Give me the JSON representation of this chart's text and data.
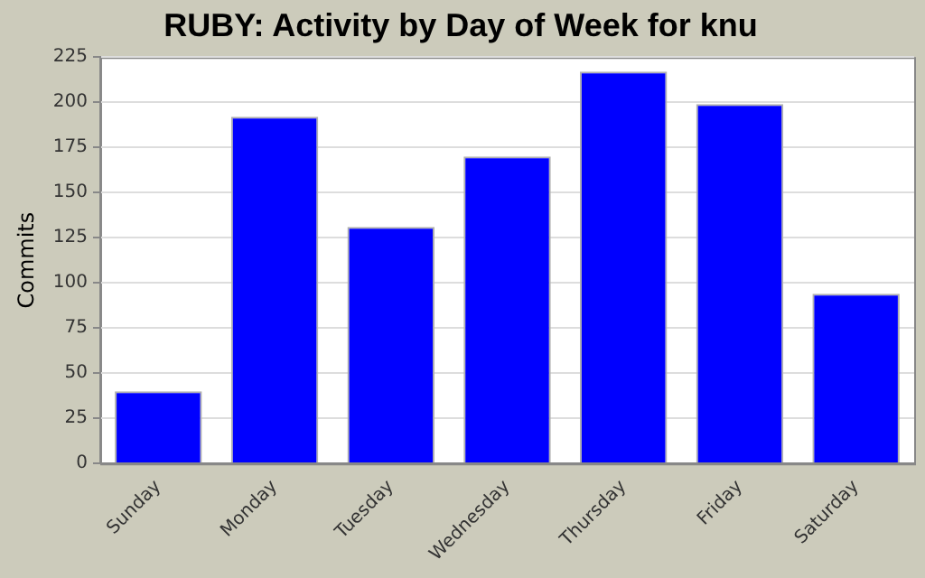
{
  "chart_data": {
    "type": "bar",
    "title": "RUBY: Activity by Day of Week for knu",
    "ylabel": "Commits",
    "categories": [
      "Sunday",
      "Monday",
      "Tuesday",
      "Wednesday",
      "Thursday",
      "Friday",
      "Saturday"
    ],
    "values": [
      40,
      192,
      131,
      170,
      217,
      199,
      94
    ],
    "color": "#0000ff",
    "ylim": [
      0,
      225
    ],
    "yticks": [
      0,
      25,
      50,
      75,
      100,
      125,
      150,
      175,
      200,
      225
    ],
    "grid": "y",
    "legend": false
  }
}
